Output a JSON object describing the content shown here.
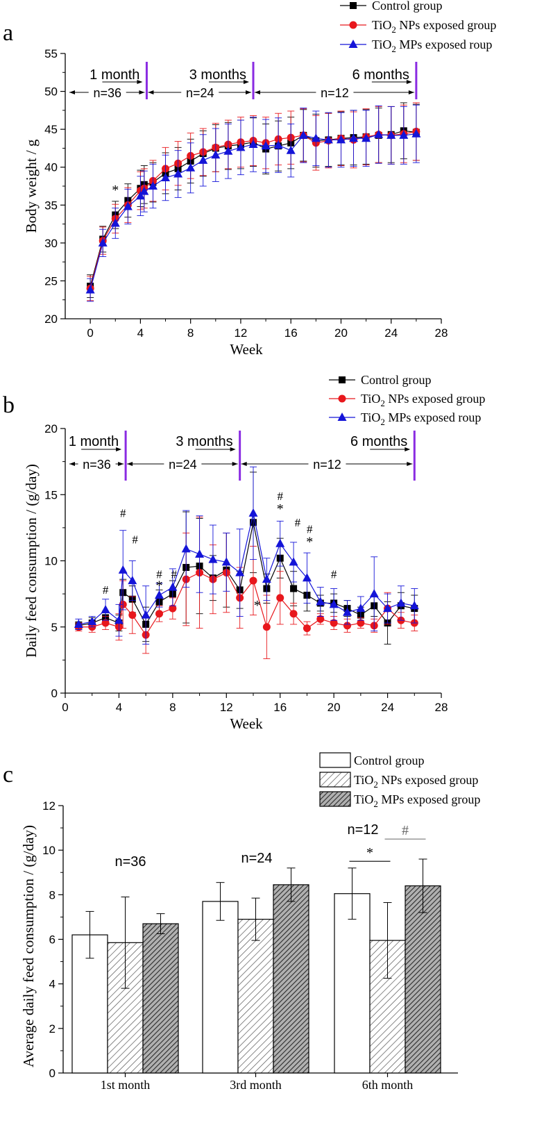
{
  "chart_data": [
    {
      "type": "line",
      "panel_label": "a",
      "xlabel": "Week",
      "ylabel": "Body weight / g",
      "xlim": [
        -2,
        28
      ],
      "ylim": [
        20,
        55
      ],
      "xticks": [
        0,
        4,
        8,
        12,
        16,
        20,
        24,
        28
      ],
      "yticks": [
        20,
        25,
        30,
        35,
        40,
        45,
        50,
        55
      ],
      "legend": [
        {
          "label": "Control group",
          "marker": "square",
          "color": "#000000"
        },
        {
          "label_main": "TiO",
          "label_sub": "2",
          "label_rest": " NPs exposed group",
          "marker": "circle",
          "color": "#e8171c"
        },
        {
          "label_main": "TiO",
          "label_sub": "2",
          "label_rest": " MPs exposed roup",
          "marker": "triangle",
          "color": "#1414d8"
        }
      ],
      "periods": [
        {
          "label": "1 month",
          "n_label": "n=36",
          "end_week": 4.5
        },
        {
          "label": "3 months",
          "n_label": "n=24",
          "end_week": 13
        },
        {
          "label": "6 months",
          "n_label": "n=12",
          "end_week": 26
        }
      ],
      "x": [
        0,
        1,
        2,
        3,
        4,
        4.3,
        5,
        6,
        7,
        8,
        9,
        10,
        11,
        12,
        13,
        14,
        15,
        16,
        17,
        18,
        19,
        20,
        21,
        22,
        23,
        24,
        25,
        26
      ],
      "series": [
        {
          "name": "Control group",
          "values": [
            24.3,
            30.5,
            33.7,
            35.6,
            37.2,
            37.7,
            38.0,
            39.2,
            39.8,
            40.8,
            41.8,
            42.5,
            42.8,
            43.0,
            43.3,
            42.4,
            42.8,
            43.2,
            44.2,
            43.5,
            43.6,
            43.8,
            43.9,
            44.0,
            44.2,
            44.3,
            44.8,
            44.6
          ],
          "err": [
            1.5,
            1.7,
            1.8,
            2.2,
            2.4,
            2.5,
            2.6,
            2.7,
            2.8,
            2.9,
            3.0,
            3.1,
            3.1,
            3.2,
            3.2,
            3.3,
            3.3,
            3.4,
            3.4,
            3.5,
            3.5,
            3.5,
            3.6,
            3.6,
            3.6,
            3.7,
            3.7,
            3.7
          ]
        },
        {
          "name": "TiO2 NPs exposed group",
          "values": [
            24.0,
            30.3,
            33.2,
            35.0,
            36.9,
            37.2,
            38.2,
            39.8,
            40.5,
            41.5,
            42.0,
            42.6,
            43.0,
            43.3,
            43.5,
            43.2,
            43.7,
            43.9,
            44.2,
            43.2,
            43.5,
            43.8,
            43.6,
            44.0,
            44.3,
            44.2,
            44.4,
            44.7
          ],
          "err": [
            1.6,
            1.8,
            1.9,
            2.3,
            2.5,
            2.6,
            2.7,
            2.8,
            2.9,
            3.0,
            3.1,
            3.2,
            3.2,
            3.3,
            3.3,
            3.4,
            3.4,
            3.5,
            3.5,
            3.6,
            3.6,
            3.6,
            3.7,
            3.7,
            3.7,
            3.8,
            3.8,
            3.8
          ]
        },
        {
          "name": "TiO2 MPs exposed roup",
          "values": [
            23.8,
            30.0,
            32.6,
            34.8,
            36.2,
            36.8,
            37.5,
            38.6,
            39.1,
            39.9,
            40.9,
            41.6,
            42.1,
            42.6,
            43.0,
            42.8,
            42.9,
            42.2,
            44.2,
            43.8,
            43.6,
            43.6,
            43.8,
            43.8,
            44.3,
            44.2,
            44.2,
            44.4
          ],
          "err": [
            1.5,
            1.8,
            2.0,
            2.3,
            2.6,
            2.7,
            2.9,
            3.0,
            3.1,
            3.3,
            3.4,
            3.5,
            3.6,
            3.6,
            3.6,
            3.5,
            3.6,
            3.5,
            3.6,
            3.6,
            3.6,
            3.6,
            3.7,
            3.7,
            3.8,
            3.8,
            3.8,
            3.8
          ]
        }
      ],
      "annotations": [
        {
          "text": "*",
          "x": 2,
          "y": 36.4
        }
      ]
    },
    {
      "type": "line",
      "panel_label": "b",
      "xlabel": "Week",
      "ylabel": "Daily feed consumption / (g/day)",
      "xlim": [
        0,
        28
      ],
      "ylim": [
        0,
        20
      ],
      "xticks": [
        0,
        4,
        8,
        12,
        16,
        20,
        24,
        28
      ],
      "yticks": [
        0,
        5,
        10,
        15,
        20
      ],
      "legend": [
        {
          "label": "Control group",
          "marker": "square",
          "color": "#000000"
        },
        {
          "label_main": "TiO",
          "label_sub": "2",
          "label_rest": " NPs exposed group",
          "marker": "circle",
          "color": "#e8171c"
        },
        {
          "label_main": "TiO",
          "label_sub": "2",
          "label_rest": " MPs exposed roup",
          "marker": "triangle",
          "color": "#1414d8"
        }
      ],
      "periods": [
        {
          "label": "1 month",
          "n_label": "n=36",
          "end_week": 4.5
        },
        {
          "label": "3 months",
          "n_label": "n=24",
          "end_week": 13
        },
        {
          "label": "6 months",
          "n_label": "n=12",
          "end_week": 26
        }
      ],
      "x": [
        1,
        2,
        3,
        4,
        4.3,
        5,
        6,
        7,
        8,
        9,
        10,
        11,
        12,
        13,
        14,
        15,
        16,
        17,
        18,
        19,
        20,
        21,
        22,
        23,
        24,
        25,
        26
      ],
      "series": [
        {
          "name": "Control group",
          "values": [
            5.1,
            5.3,
            5.7,
            5.3,
            7.6,
            7.1,
            5.2,
            6.9,
            7.5,
            9.5,
            9.6,
            8.7,
            9.3,
            7.8,
            12.9,
            7.9,
            10.2,
            7.9,
            7.4,
            6.8,
            6.8,
            6.4,
            5.9,
            6.6,
            5.3,
            6.6,
            6.4
          ],
          "err": [
            0.3,
            0.4,
            0.5,
            0.6,
            1.0,
            1.0,
            1.3,
            0.9,
            1.0,
            4.2,
            3.6,
            1.7,
            2.8,
            1.4,
            3.8,
            1.1,
            1.5,
            1.3,
            1.2,
            0.6,
            0.7,
            0.6,
            0.6,
            0.8,
            1.6,
            1.0,
            1.0
          ]
        },
        {
          "name": "TiO2 NPs exposed group",
          "values": [
            5.0,
            5.0,
            5.3,
            5.0,
            6.7,
            5.9,
            4.4,
            6.0,
            6.4,
            8.6,
            9.1,
            8.6,
            9.1,
            7.2,
            8.5,
            5.0,
            7.2,
            6.0,
            4.9,
            5.6,
            5.3,
            5.1,
            5.3,
            5.1,
            6.4,
            5.5,
            5.3
          ],
          "err": [
            0.3,
            0.4,
            0.5,
            1.0,
            1.8,
            1.4,
            1.4,
            0.6,
            0.8,
            3.5,
            4.2,
            2.6,
            3.0,
            2.3,
            2.6,
            2.4,
            2.0,
            0.8,
            0.5,
            0.4,
            0.5,
            0.5,
            0.4,
            0.5,
            1.2,
            0.6,
            0.6
          ]
        },
        {
          "name": "TiO2 MPs exposed roup",
          "values": [
            5.2,
            5.4,
            6.3,
            5.5,
            9.3,
            8.5,
            5.9,
            7.4,
            8.0,
            10.9,
            10.5,
            10.1,
            9.9,
            9.1,
            13.6,
            8.6,
            11.3,
            9.9,
            8.7,
            6.9,
            6.7,
            6.1,
            6.4,
            7.5,
            6.4,
            6.8,
            6.6
          ],
          "err": [
            0.4,
            0.4,
            0.8,
            1.2,
            3.0,
            1.5,
            2.2,
            0.9,
            1.4,
            2.9,
            2.9,
            2.6,
            2.2,
            3.3,
            3.5,
            1.6,
            1.7,
            1.5,
            1.9,
            1.1,
            1.2,
            0.9,
            0.9,
            2.8,
            1.1,
            1.3,
            1.3
          ]
        }
      ],
      "annotations": [
        {
          "text": "#",
          "x": 3,
          "y": 7.5
        },
        {
          "text": "#",
          "x": 4.3,
          "y": 13.3
        },
        {
          "text": "#",
          "x": 5.2,
          "y": 11.3
        },
        {
          "text": "#",
          "x": 7,
          "y": 8.7
        },
        {
          "text": "*",
          "x": 7,
          "y": 7.8
        },
        {
          "text": "#",
          "x": 8.1,
          "y": 8.7
        },
        {
          "text": "*",
          "x": 14.3,
          "y": 6.3
        },
        {
          "text": "#",
          "x": 16,
          "y": 14.6
        },
        {
          "text": "*",
          "x": 16,
          "y": 13.6
        },
        {
          "text": "#",
          "x": 17.3,
          "y": 12.6
        },
        {
          "text": "#",
          "x": 18.2,
          "y": 12.1
        },
        {
          "text": "*",
          "x": 18.2,
          "y": 11.1
        },
        {
          "text": "#",
          "x": 20,
          "y": 8.7
        }
      ]
    },
    {
      "type": "bar",
      "panel_label": "c",
      "ylabel": "Average daily feed consumption / (g/day)",
      "ylim": [
        0,
        12
      ],
      "yticks": [
        0,
        2,
        4,
        6,
        8,
        10,
        12
      ],
      "categories": [
        "1st month",
        "3rd month",
        "6th month"
      ],
      "n_labels": [
        "n=36",
        "n=24",
        "n=12"
      ],
      "legend": [
        {
          "label": "Control group",
          "pattern": "white"
        },
        {
          "label_main": "TiO",
          "label_sub": "2",
          "label_rest": " NPs exposed group",
          "pattern": "light-hatch"
        },
        {
          "label_main": "TiO",
          "label_sub": "2",
          "label_rest": " MPs exposed group",
          "pattern": "dark-hatch"
        }
      ],
      "series": [
        {
          "name": "Control group",
          "values": [
            6.2,
            7.7,
            8.05
          ],
          "err": [
            1.05,
            0.85,
            1.15
          ]
        },
        {
          "name": "TiO2 NPs exposed group",
          "values": [
            5.85,
            6.9,
            5.95
          ],
          "err": [
            2.05,
            0.95,
            1.7
          ]
        },
        {
          "name": "TiO2 MPs exposed group",
          "values": [
            6.7,
            8.45,
            8.4
          ],
          "err": [
            0.45,
            0.75,
            1.2
          ]
        }
      ],
      "significance": [
        {
          "text": "*",
          "category": 2,
          "from_series": 0,
          "to_series": 1,
          "y": 9.5
        },
        {
          "text": "#",
          "category": 2,
          "from_series": 1,
          "to_series": 2,
          "y": 10.5
        }
      ]
    }
  ]
}
